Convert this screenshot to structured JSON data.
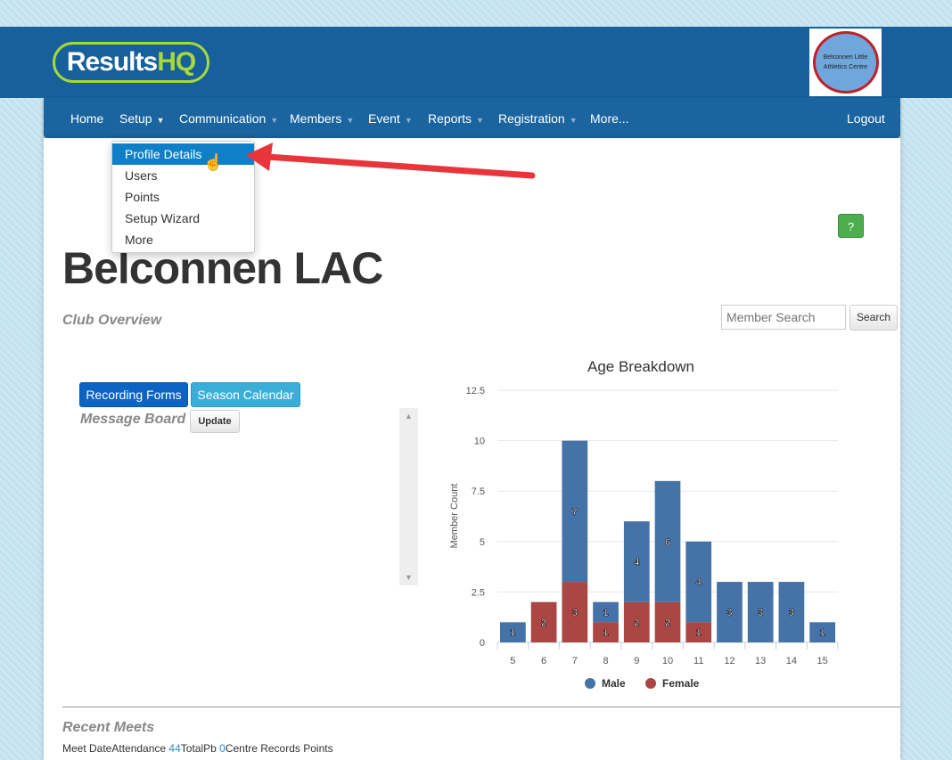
{
  "header": {
    "logo_text": "Results",
    "logo_accent": "HQ",
    "club_logo_text": "Belconnen Little Athletics Centre"
  },
  "nav": {
    "items": [
      "Home",
      "Setup",
      "Communication",
      "Members",
      "Event",
      "Reports",
      "Registration",
      "More..."
    ],
    "logout": "Logout"
  },
  "setup_menu": {
    "items": [
      "Profile Details",
      "Users",
      "Points",
      "Setup Wizard",
      "More"
    ],
    "active": "Profile Details"
  },
  "help_label": "?",
  "page": {
    "title": "Belconnen LAC",
    "subtitle": "Club Overview"
  },
  "search": {
    "placeholder": "Member Search",
    "button": "Search"
  },
  "buttons": {
    "recording_forms": "Recording Forms",
    "season_calendar": "Season Calendar",
    "update": "Update"
  },
  "message_board": {
    "title": "Message Board"
  },
  "recent_meets": {
    "title": "Recent Meets",
    "meet_date": "Meet Date",
    "attendance_label": "Attendance",
    "attendance": "44",
    "total_pb_label": "TotalPb",
    "total_pb": "0",
    "centre_records": "Centre Records",
    "points": "Points"
  },
  "colors": {
    "header": "#17609c",
    "male": "#4572a7",
    "female": "#aa4643",
    "accent": "#a6d93a"
  },
  "chart_data": {
    "type": "bar",
    "stacked": true,
    "title": "Age Breakdown",
    "xlabel": "",
    "ylabel": "Member Count",
    "categories": [
      "5",
      "6",
      "7",
      "8",
      "9",
      "10",
      "11",
      "12",
      "13",
      "14",
      "15"
    ],
    "yticks": [
      "0",
      "2.5",
      "5",
      "7.5",
      "10",
      "12.5"
    ],
    "ylim": [
      0,
      12.5
    ],
    "grid": true,
    "legend": "bottom",
    "series": [
      {
        "name": "Male",
        "color": "#4572a7",
        "values": [
          1,
          0,
          7,
          1,
          4,
          6,
          4,
          3,
          3,
          3,
          1
        ]
      },
      {
        "name": "Female",
        "color": "#aa4643",
        "values": [
          0,
          2,
          3,
          1,
          2,
          2,
          1,
          0,
          0,
          0,
          0
        ]
      }
    ]
  }
}
